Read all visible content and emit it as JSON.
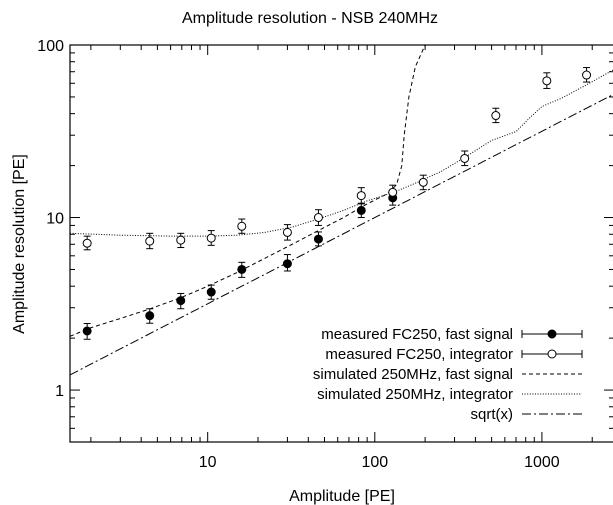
{
  "chart_data": {
    "type": "scatter",
    "title": "Amplitude resolution - NSB 240MHz",
    "xlabel": "Amplitude [PE]",
    "ylabel": "Amplitude resolution [PE]",
    "xscale": "log",
    "yscale": "log",
    "xlim": [
      1.5,
      2700
    ],
    "ylim": [
      0.5,
      100
    ],
    "x_ticks": [
      10,
      100,
      1000
    ],
    "x_tick_labels": [
      "10",
      "100",
      "1000"
    ],
    "y_ticks": [
      1,
      10,
      100
    ],
    "y_tick_labels": [
      "1",
      "10",
      "100"
    ],
    "legend_position": "bottom-right",
    "grid": false,
    "series": [
      {
        "name": "measured FC250, fast signal",
        "style": "errorbar-filled",
        "points": [
          {
            "x": 1.9,
            "y": 2.2,
            "yerr": [
              1.97,
              2.43
            ]
          },
          {
            "x": 4.5,
            "y": 2.7,
            "yerr": [
              2.44,
              2.96
            ]
          },
          {
            "x": 6.9,
            "y": 3.3,
            "yerr": [
              2.96,
              3.63
            ]
          },
          {
            "x": 10.5,
            "y": 3.7,
            "yerr": [
              3.36,
              4.06
            ]
          },
          {
            "x": 16,
            "y": 5.0,
            "yerr": [
              4.5,
              5.5
            ]
          },
          {
            "x": 30,
            "y": 5.4,
            "yerr": [
              4.9,
              6.1
            ]
          },
          {
            "x": 46,
            "y": 7.5,
            "yerr": [
              6.85,
              8.25
            ]
          },
          {
            "x": 83,
            "y": 11.0,
            "yerr": [
              10.0,
              12.1
            ]
          },
          {
            "x": 128,
            "y": 13.0,
            "yerr": [
              11.8,
              14.3
            ]
          }
        ]
      },
      {
        "name": "measured FC250, integrator",
        "style": "errorbar-open",
        "points": [
          {
            "x": 1.9,
            "y": 7.1,
            "yerr": [
              6.5,
              7.8
            ]
          },
          {
            "x": 4.5,
            "y": 7.3,
            "yerr": [
              6.6,
              8.1
            ]
          },
          {
            "x": 6.9,
            "y": 7.4,
            "yerr": [
              6.7,
              8.1
            ]
          },
          {
            "x": 10.5,
            "y": 7.6,
            "yerr": [
              6.9,
              8.4
            ]
          },
          {
            "x": 16,
            "y": 8.9,
            "yerr": [
              8.1,
              9.8
            ]
          },
          {
            "x": 30,
            "y": 8.2,
            "yerr": [
              7.4,
              9.1
            ]
          },
          {
            "x": 46,
            "y": 10.0,
            "yerr": [
              9.0,
              11.1
            ]
          },
          {
            "x": 83,
            "y": 13.4,
            "yerr": [
              12.0,
              14.9
            ]
          },
          {
            "x": 128,
            "y": 14.0,
            "yerr": [
              12.7,
              15.4
            ]
          },
          {
            "x": 195,
            "y": 16.0,
            "yerr": [
              14.5,
              17.6
            ]
          },
          {
            "x": 345,
            "y": 22.0,
            "yerr": [
              20.0,
              24.3
            ]
          },
          {
            "x": 530,
            "y": 39.0,
            "yerr": [
              35.5,
              43.0
            ]
          },
          {
            "x": 1070,
            "y": 62.0,
            "yerr": [
              56.0,
              69.0
            ]
          },
          {
            "x": 1850,
            "y": 67.0,
            "yerr": [
              61.0,
              74.0
            ]
          }
        ]
      },
      {
        "name": "simulated 250MHz, fast signal",
        "style": "dashed",
        "x": [
          1.5,
          2,
          3,
          4.5,
          7,
          10,
          15,
          22,
          32,
          46,
          65,
          90,
          120,
          135,
          145,
          150,
          160,
          175,
          200
        ],
        "y": [
          2.05,
          2.3,
          2.6,
          2.95,
          3.45,
          4.0,
          4.8,
          5.8,
          7.0,
          8.4,
          10.0,
          12.0,
          13.8,
          15.5,
          20,
          30,
          50,
          75,
          100
        ]
      },
      {
        "name": "simulated 250MHz, integrator",
        "style": "dotted",
        "x": [
          1.5,
          3,
          6,
          10,
          15,
          22,
          32,
          46,
          65,
          90,
          130,
          180,
          250,
          350,
          500,
          700,
          850,
          1000,
          1300,
          1800,
          2700
        ],
        "y": [
          8.1,
          7.9,
          7.8,
          7.8,
          7.9,
          8.2,
          8.8,
          9.8,
          11.0,
          12.5,
          14.0,
          16.0,
          18.5,
          22.5,
          28.0,
          31.5,
          38.0,
          44.0,
          49.0,
          58.0,
          72.0
        ]
      },
      {
        "name": "sqrt(x)",
        "style": "dash-dot",
        "function": "sqrt",
        "x": [
          1.5,
          2700
        ],
        "y": [
          1.2247,
          51.96
        ]
      }
    ]
  }
}
